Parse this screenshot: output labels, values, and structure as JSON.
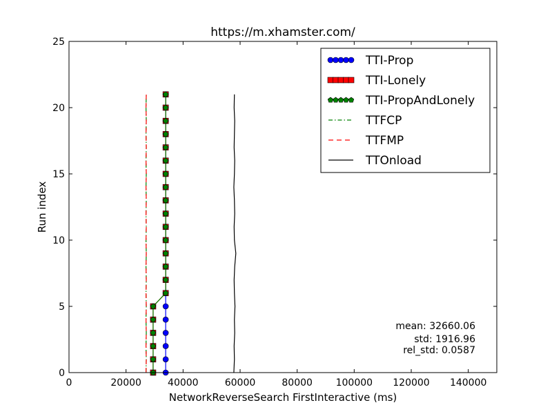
{
  "chart_data": {
    "type": "line",
    "title": "https://m.xhamster.com/",
    "xlabel": "NetworkReverseSearch FirstInteractive (ms)",
    "ylabel": "Run index",
    "xlim": [
      0,
      150000
    ],
    "ylim": [
      0,
      25
    ],
    "xticks": [
      0,
      20000,
      40000,
      60000,
      80000,
      100000,
      120000,
      140000
    ],
    "yticks": [
      0,
      5,
      10,
      15,
      20,
      25
    ],
    "xtick_labels": [
      "0",
      "20000",
      "40000",
      "60000",
      "80000",
      "100000",
      "120000",
      "140000"
    ],
    "ytick_labels": [
      "0",
      "5",
      "10",
      "15",
      "20",
      "25"
    ],
    "grid": false,
    "legend_position": "top-right",
    "stats": {
      "mean": "mean: 32660.06",
      "std": "std: 1916.96",
      "rel_std": "rel_std: 0.0587"
    },
    "series": [
      {
        "name": "TTI-Prop",
        "color": "#0000ff",
        "marker": "circle",
        "style": "solid",
        "y": [
          0,
          1,
          2,
          3,
          4,
          5,
          6,
          7,
          8,
          9,
          10,
          11,
          12,
          13,
          14,
          15,
          16,
          17,
          18,
          19,
          20,
          21
        ],
        "x": [
          33900,
          33900,
          33900,
          33900,
          33900,
          33900,
          33900,
          33900,
          33900,
          33900,
          33900,
          33900,
          33900,
          33900,
          33900,
          33900,
          33900,
          33900,
          33900,
          33900,
          33900,
          33900
        ]
      },
      {
        "name": "TTI-Lonely",
        "color": "#ff0000",
        "marker": "square",
        "style": "solid",
        "y": [
          0,
          1,
          2,
          3,
          4,
          5,
          6,
          7,
          8,
          9,
          10,
          11,
          12,
          13,
          14,
          15,
          16,
          17,
          18,
          19,
          20,
          21
        ],
        "x": [
          29500,
          29500,
          29500,
          29500,
          29500,
          29500,
          33900,
          33900,
          33900,
          33900,
          33900,
          33900,
          33900,
          33900,
          33900,
          33900,
          33900,
          33900,
          33900,
          33900,
          33900,
          33900
        ]
      },
      {
        "name": "TTI-PropAndLonely",
        "color": "#008000",
        "marker": "pentagon",
        "style": "solid",
        "y": [
          0,
          1,
          2,
          3,
          4,
          5,
          6,
          7,
          8,
          9,
          10,
          11,
          12,
          13,
          14,
          15,
          16,
          17,
          18,
          19,
          20,
          21
        ],
        "x": [
          29500,
          29500,
          29500,
          29500,
          29500,
          29500,
          33900,
          33900,
          33900,
          33900,
          33900,
          33900,
          33900,
          33900,
          33900,
          33900,
          33900,
          33900,
          33900,
          33900,
          33900,
          33900
        ]
      },
      {
        "name": "TTFCP",
        "color": "#008000",
        "marker": "none",
        "style": "dashdot",
        "y": [
          0,
          1,
          2,
          3,
          4,
          5,
          6,
          7,
          8,
          9,
          10,
          11,
          12,
          13,
          14,
          15,
          16,
          17,
          18,
          19,
          20,
          21
        ],
        "x": [
          27000,
          27100,
          27000,
          27100,
          27000,
          27100,
          27000,
          27100,
          27000,
          27100,
          27000,
          27100,
          27000,
          27100,
          27000,
          27100,
          27000,
          27100,
          27000,
          27100,
          27000,
          27100
        ]
      },
      {
        "name": "TTFMP",
        "color": "#ff0000",
        "marker": "none",
        "style": "dashed",
        "y": [
          0,
          1,
          2,
          3,
          4,
          5,
          6,
          7,
          8,
          9,
          10,
          11,
          12,
          13,
          14,
          15,
          16,
          17,
          18,
          19,
          20,
          21
        ],
        "x": [
          27000,
          27100,
          27000,
          27100,
          27000,
          27100,
          27000,
          27100,
          27000,
          27100,
          27000,
          27100,
          27000,
          27100,
          27000,
          27100,
          27000,
          27100,
          27000,
          27100,
          27000,
          27100
        ]
      },
      {
        "name": "TTOnload",
        "color": "#000000",
        "marker": "none",
        "style": "solid",
        "y": [
          0,
          1,
          2,
          3,
          4,
          5,
          6,
          7,
          8,
          9,
          10,
          11,
          12,
          13,
          14,
          15,
          16,
          17,
          18,
          19,
          20,
          21
        ],
        "x": [
          57800,
          58000,
          57900,
          58100,
          58000,
          58200,
          58000,
          57900,
          58100,
          58500,
          58000,
          57900,
          58100,
          58000,
          57800,
          58000,
          58100,
          57900,
          58000,
          58100,
          57900,
          58000
        ]
      }
    ]
  }
}
